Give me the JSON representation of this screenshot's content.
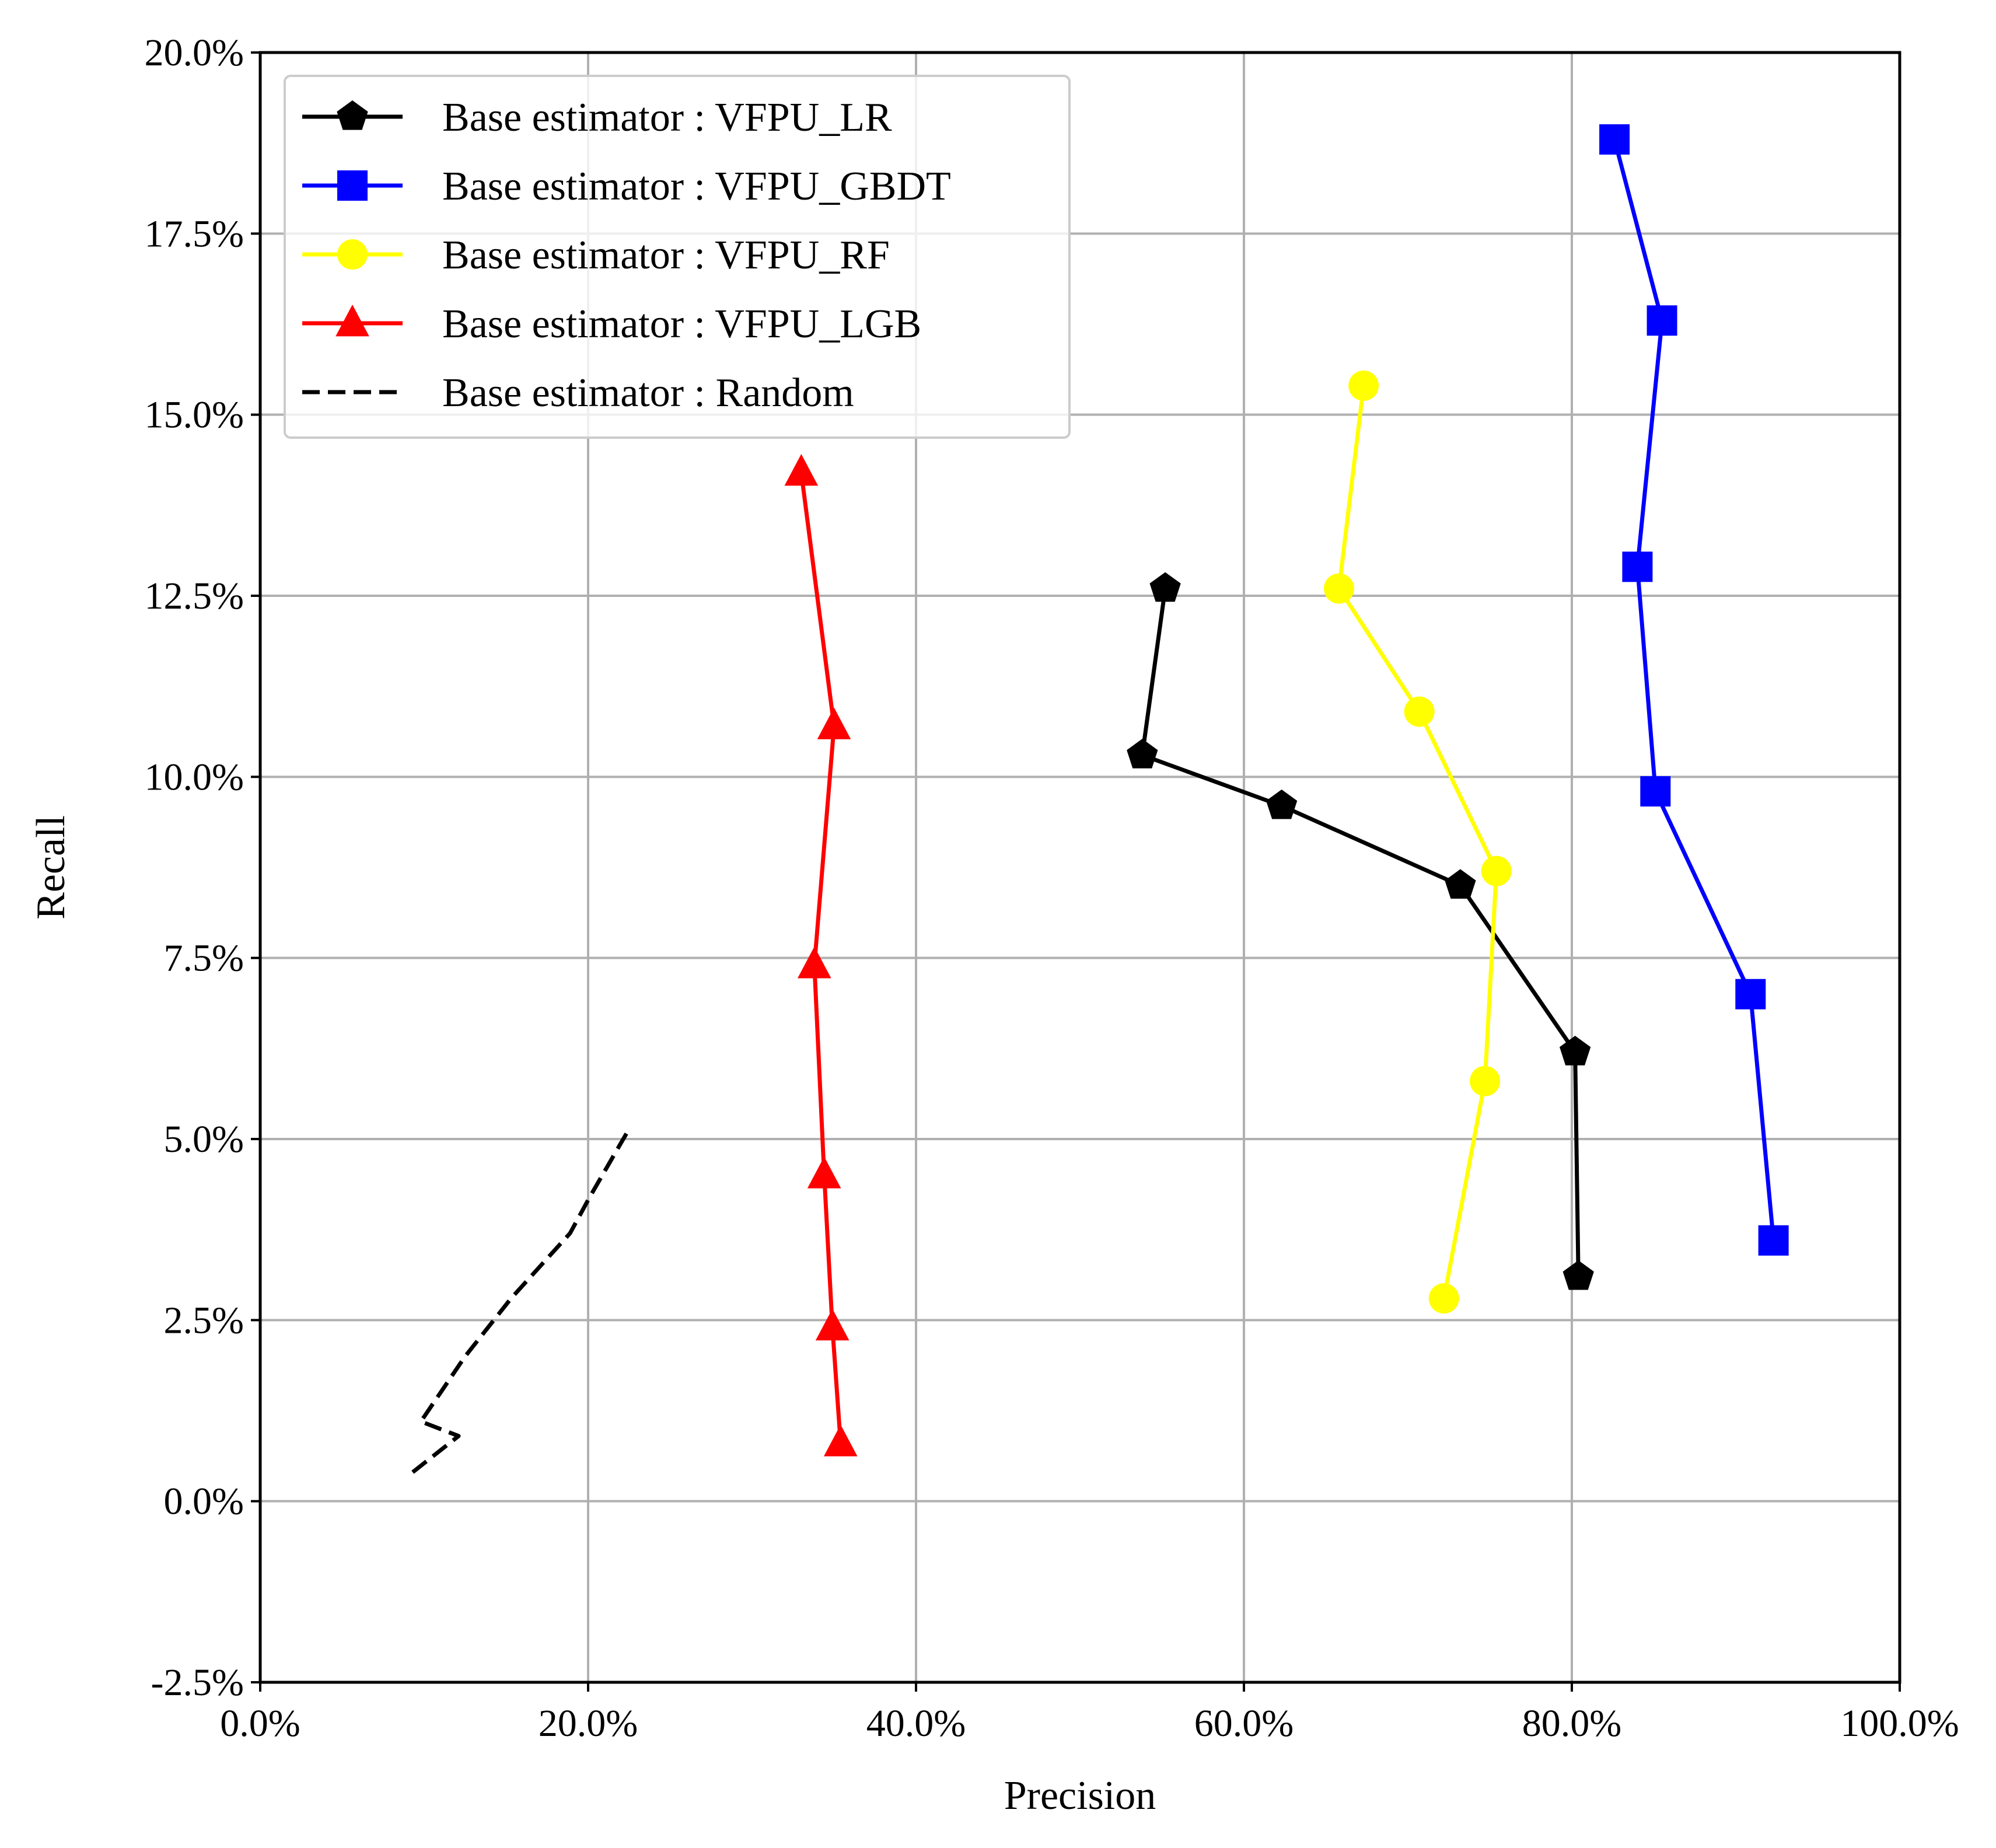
{
  "chart_data": {
    "type": "line",
    "xlabel": "Precision",
    "ylabel": "Recall",
    "xlim": [
      0,
      100
    ],
    "ylim": [
      -2.5,
      20
    ],
    "x_ticks": [
      0,
      20,
      40,
      60,
      80,
      100
    ],
    "y_ticks": [
      -2.5,
      0,
      2.5,
      5,
      7.5,
      10,
      12.5,
      15,
      17.5,
      20
    ],
    "x_tick_labels": [
      "0.0%",
      "20.0%",
      "40.0%",
      "60.0%",
      "80.0%",
      "100.0%"
    ],
    "y_tick_labels": [
      "-2.5%",
      "0.0%",
      "2.5%",
      "5.0%",
      "7.5%",
      "10.0%",
      "12.5%",
      "15.0%",
      "17.5%",
      "20.0%"
    ],
    "grid": true,
    "legend_position": "top-left",
    "series": [
      {
        "name": "Base estimator : VFPU_LR",
        "color": "#000000",
        "marker": "pentagon",
        "dash": "solid",
        "x": [
          80.4,
          80.2,
          73.2,
          62.3,
          53.8,
          55.2
        ],
        "y": [
          3.1,
          6.2,
          8.5,
          9.6,
          10.3,
          12.6
        ]
      },
      {
        "name": "Base estimator : VFPU_GBDT",
        "color": "#0000ff",
        "marker": "square",
        "dash": "solid",
        "x": [
          92.3,
          90.9,
          85.1,
          84.0,
          85.5,
          82.6
        ],
        "y": [
          3.6,
          7.0,
          9.8,
          12.9,
          16.3,
          18.8
        ]
      },
      {
        "name": "Base estimator : VFPU_RF",
        "color": "#ffff00",
        "marker": "circle",
        "dash": "solid",
        "x": [
          72.2,
          74.7,
          75.4,
          70.7,
          65.8,
          67.3
        ],
        "y": [
          2.8,
          5.8,
          8.7,
          10.9,
          12.6,
          15.4
        ]
      },
      {
        "name": "Base estimator : VFPU_LGB",
        "color": "#ff0000",
        "marker": "triangle",
        "dash": "solid",
        "x": [
          35.4,
          34.9,
          34.4,
          33.8,
          35.0,
          33.0
        ],
        "y": [
          0.8,
          2.4,
          4.5,
          7.4,
          10.7,
          14.2
        ]
      },
      {
        "name": "Base estimator : Random",
        "color": "#000000",
        "marker": "none",
        "dash": "dashed",
        "x": [
          9.3,
          12.1,
          9.8,
          12.5,
          15.3,
          18.9,
          20.1,
          22.4
        ],
        "y": [
          0.4,
          0.9,
          1.1,
          2.0,
          2.8,
          3.7,
          4.2,
          5.1
        ]
      }
    ]
  }
}
